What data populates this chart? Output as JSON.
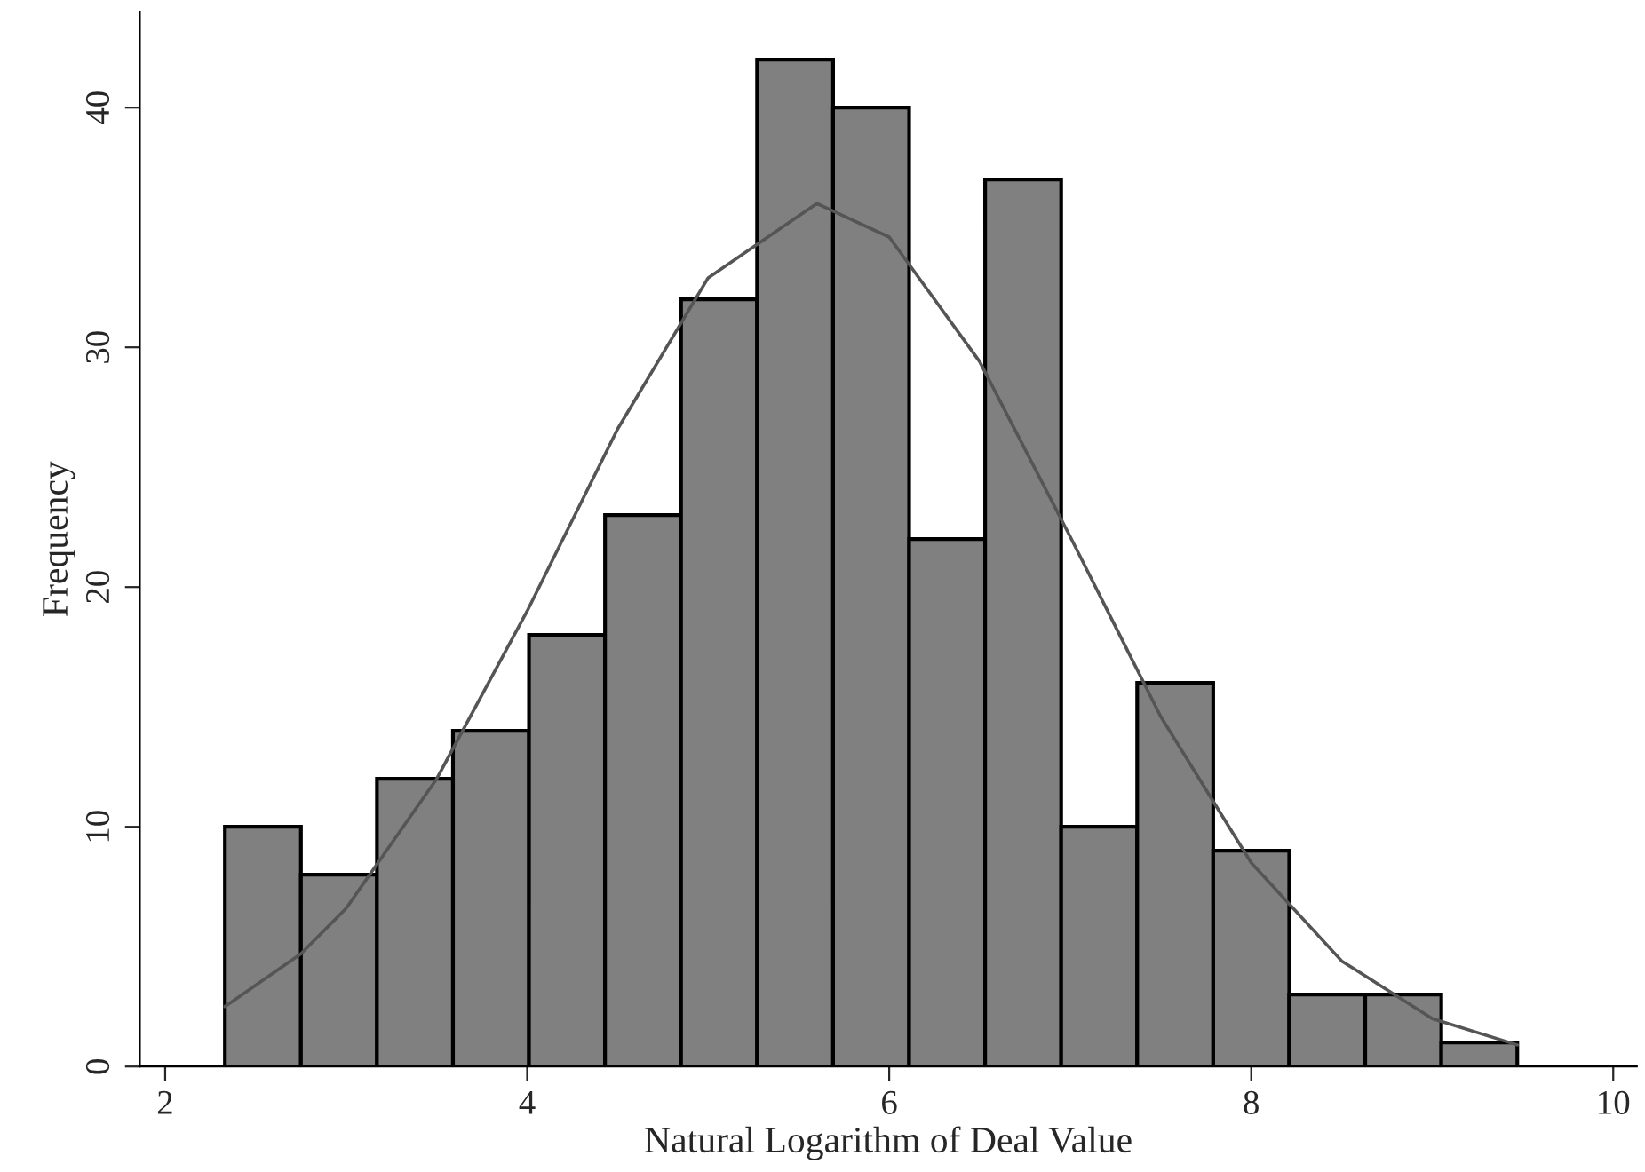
{
  "chart_data": {
    "type": "histogram",
    "xlabel": "Natural Logarithm of Deal Value",
    "ylabel": "Frequency",
    "bins": [
      2.33,
      2.75,
      3.17,
      3.59,
      4.01,
      4.43,
      4.85,
      5.27,
      5.69,
      6.11,
      6.53,
      6.95,
      7.37,
      7.79,
      8.21,
      8.63,
      9.05,
      9.47
    ],
    "values": [
      10,
      8,
      12,
      14,
      18,
      23,
      32,
      42,
      40,
      22,
      37,
      10,
      16,
      9,
      3,
      3,
      1
    ],
    "color": "#808080",
    "series": [
      {
        "type": "line",
        "color": "#555555",
        "x": [
          2.33,
          2.75,
          3.0,
          3.5,
          4.0,
          4.5,
          5.0,
          5.6,
          6.0,
          6.5,
          7.0,
          7.5,
          8.0,
          8.5,
          9.0,
          9.47
        ],
        "values": [
          2.5,
          4.7,
          6.6,
          12.0,
          19.0,
          26.6,
          32.9,
          36,
          34.6,
          29.4,
          22.1,
          14.6,
          8.5,
          4.4,
          2.0,
          0.9
        ]
      }
    ],
    "xlim": [
      1.86,
      10.13
    ],
    "xticks": [
      2,
      4,
      6,
      8,
      10
    ],
    "ylim": [
      0,
      44
    ],
    "yticks": [
      0,
      10,
      20,
      30,
      40
    ],
    "grid": false
  }
}
